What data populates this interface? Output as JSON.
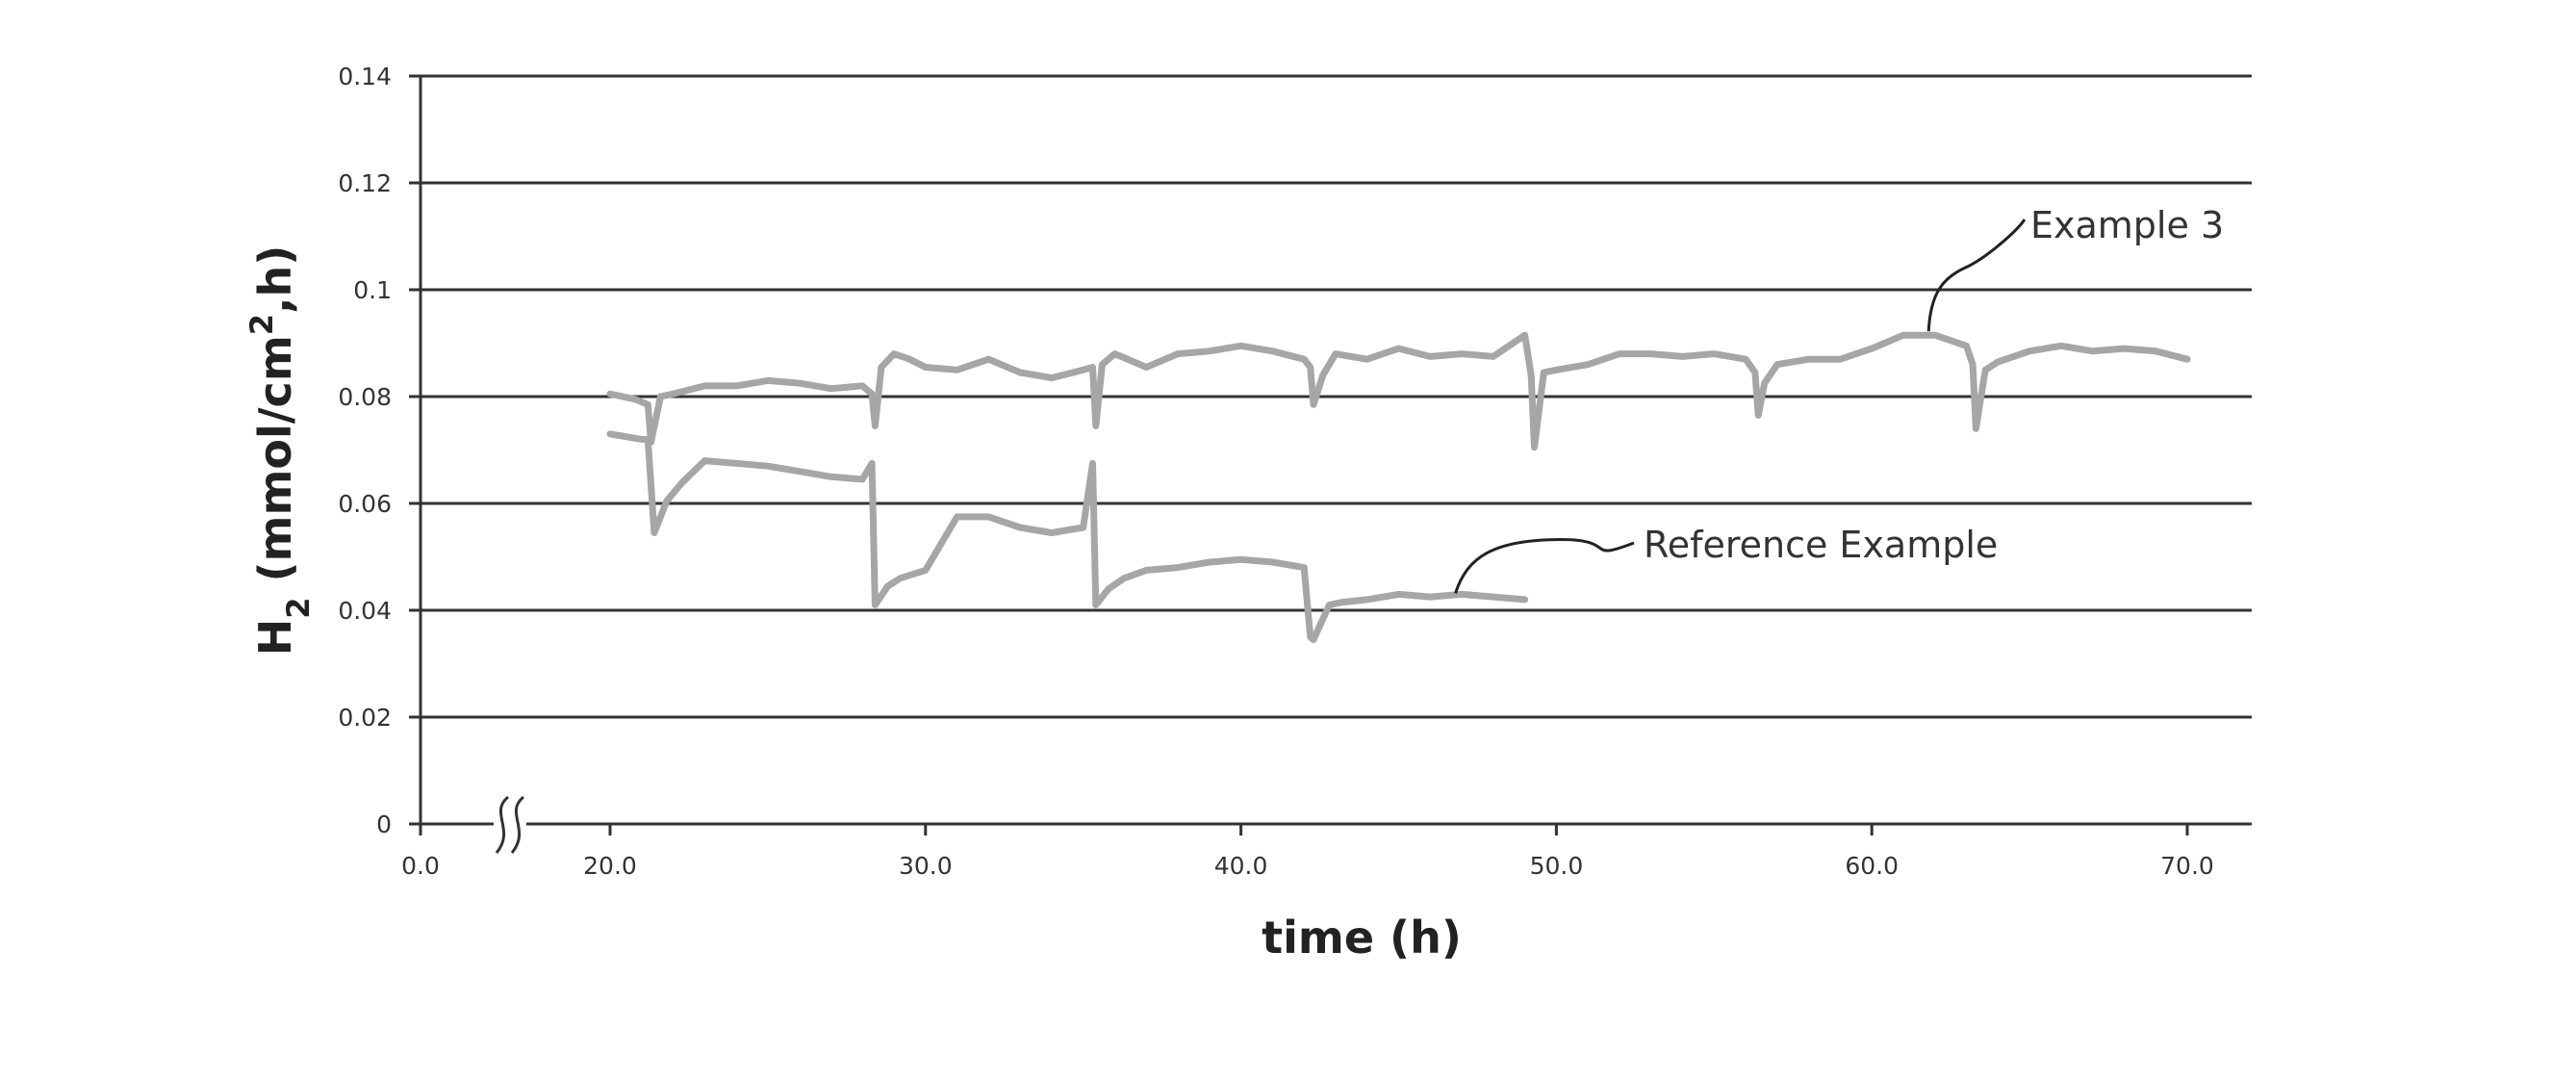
{
  "chart_data": {
    "type": "line",
    "title": "",
    "xlabel": "time (h)",
    "ylabel": "H",
    "ylabel_subscript": "2",
    "ylabel_units_pre": " (mmol/cm",
    "ylabel_units_sup": "2",
    "ylabel_units_post": ",h)",
    "xlim": [
      0,
      70
    ],
    "ylim": [
      0,
      0.14
    ],
    "x_axis_break": true,
    "grid": "horizontal",
    "legend": "inline-callouts",
    "x_ticks": [
      0,
      20,
      30,
      40,
      50,
      60,
      70
    ],
    "x_tick_labels": [
      "0.0",
      "20.0",
      "30.0",
      "40.0",
      "50.0",
      "60.0",
      "70.0"
    ],
    "y_ticks": [
      0,
      0.02,
      0.04,
      0.06,
      0.08,
      0.1,
      0.12,
      0.14
    ],
    "y_tick_labels": [
      "0",
      "0.02",
      "0.04",
      "0.06",
      "0.08",
      "0.1",
      "0.12",
      "0.14"
    ],
    "colors": {
      "series_line": "#a6a6a6",
      "gridline": "#333333",
      "axis": "#333333",
      "callout": "#222222"
    },
    "series": [
      {
        "name": "Example 3",
        "x": [
          20.0,
          20.8,
          21.2,
          21.3,
          21.6,
          22.0,
          23.0,
          24.0,
          25.0,
          26.0,
          27.0,
          28.0,
          28.3,
          28.4,
          28.6,
          29.0,
          29.5,
          30.0,
          31.0,
          32.0,
          33.0,
          34.0,
          35.0,
          35.3,
          35.4,
          35.6,
          36.0,
          37.0,
          38.0,
          39.0,
          40.0,
          41.0,
          42.0,
          42.2,
          42.3,
          42.6,
          43.0,
          44.0,
          45.0,
          46.0,
          47.0,
          48.0,
          49.0,
          49.2,
          49.3,
          49.6,
          50.0,
          51.0,
          52.0,
          53.0,
          54.0,
          55.0,
          56.0,
          56.3,
          56.4,
          56.6,
          57.0,
          58.0,
          59.0,
          60.0,
          61.0,
          62.0,
          63.0,
          63.2,
          63.3,
          63.6,
          64.0,
          65.0,
          66.0,
          67.0,
          68.0,
          69.0,
          70.0
        ],
        "y": [
          0.0805,
          0.0795,
          0.0785,
          0.0715,
          0.08,
          0.0805,
          0.082,
          0.082,
          0.083,
          0.0825,
          0.0815,
          0.082,
          0.0805,
          0.0745,
          0.0855,
          0.088,
          0.087,
          0.0855,
          0.085,
          0.087,
          0.0845,
          0.0835,
          0.085,
          0.0855,
          0.0745,
          0.086,
          0.088,
          0.0855,
          0.088,
          0.0885,
          0.0895,
          0.0885,
          0.087,
          0.0855,
          0.0785,
          0.084,
          0.088,
          0.087,
          0.089,
          0.0875,
          0.088,
          0.0875,
          0.0915,
          0.084,
          0.0705,
          0.0845,
          0.085,
          0.086,
          0.088,
          0.088,
          0.0875,
          0.088,
          0.087,
          0.0845,
          0.0765,
          0.0825,
          0.086,
          0.087,
          0.087,
          0.089,
          0.0915,
          0.0915,
          0.0895,
          0.086,
          0.074,
          0.085,
          0.0865,
          0.0885,
          0.0895,
          0.0885,
          0.089,
          0.0885,
          0.087
        ]
      },
      {
        "name": "Reference Example",
        "x": [
          20.0,
          21.0,
          21.2,
          21.4,
          21.8,
          22.3,
          23.0,
          24.0,
          25.0,
          26.0,
          27.0,
          28.0,
          28.3,
          28.4,
          28.8,
          29.2,
          30.0,
          31.0,
          32.0,
          33.0,
          34.0,
          35.0,
          35.3,
          35.4,
          35.8,
          36.3,
          37.0,
          38.0,
          39.0,
          40.0,
          41.0,
          42.0,
          42.2,
          42.3,
          42.8,
          43.2,
          44.0,
          45.0,
          46.0,
          47.0,
          48.0,
          49.0
        ],
        "y": [
          0.073,
          0.072,
          0.072,
          0.0545,
          0.0605,
          0.064,
          0.068,
          0.0675,
          0.067,
          0.066,
          0.065,
          0.0645,
          0.0675,
          0.041,
          0.0445,
          0.046,
          0.0475,
          0.0575,
          0.0575,
          0.0555,
          0.0545,
          0.0555,
          0.0675,
          0.041,
          0.044,
          0.046,
          0.0475,
          0.048,
          0.049,
          0.0495,
          0.049,
          0.048,
          0.035,
          0.0345,
          0.041,
          0.0415,
          0.042,
          0.043,
          0.0425,
          0.043,
          0.0425,
          0.042
        ]
      }
    ],
    "annotations": [
      {
        "text": "Example 3",
        "target_series": "Example 3",
        "target_x": 61.8,
        "target_y": 0.0915
      },
      {
        "text": "Reference Example",
        "target_series": "Reference Example",
        "target_x": 46.8,
        "target_y": 0.0428
      }
    ]
  }
}
